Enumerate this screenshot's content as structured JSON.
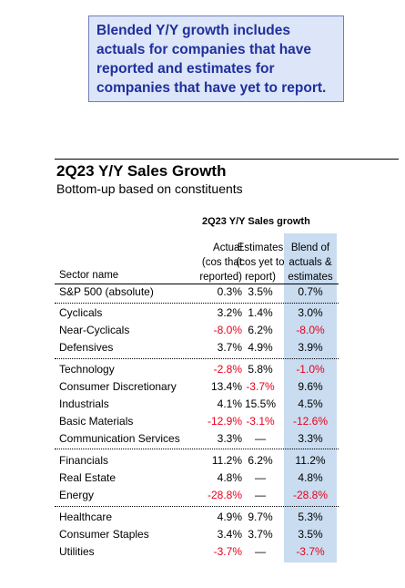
{
  "callout": {
    "text": "Blended Y/Y growth includes actuals for companies that have reported and estimates for companies that have yet to report."
  },
  "title": "2Q23 Y/Y Sales Growth",
  "subtitle": "Bottom-up based on constituents",
  "table": {
    "title": "2Q23 Y/Y Sales growth",
    "headers": {
      "sector": "Sector name",
      "actual": [
        "Actual",
        "(cos that",
        "reported)"
      ],
      "estimates": [
        "Estimates",
        "(cos yet to",
        "report)"
      ],
      "blend": [
        "Blend of",
        "actuals &",
        "estimates"
      ]
    },
    "rows": [
      {
        "sector": "S&P 500 (absolute)",
        "actual": "0.3%",
        "estimates": "3.5%",
        "blend": "0.7%"
      },
      {
        "sector": "Cyclicals",
        "actual": "3.2%",
        "estimates": "1.4%",
        "blend": "3.0%"
      },
      {
        "sector": "Near-Cyclicals",
        "actual": "-8.0%",
        "estimates": "6.2%",
        "blend": "-8.0%"
      },
      {
        "sector": "Defensives",
        "actual": "3.7%",
        "estimates": "4.9%",
        "blend": "3.9%"
      },
      {
        "sector": "Technology",
        "actual": "-2.8%",
        "estimates": "5.8%",
        "blend": "-1.0%"
      },
      {
        "sector": "Consumer Discretionary",
        "actual": "13.4%",
        "estimates": "-3.7%",
        "blend": "9.6%"
      },
      {
        "sector": "Industrials",
        "actual": "4.1%",
        "estimates": "15.5%",
        "blend": "4.5%"
      },
      {
        "sector": "Basic Materials",
        "actual": "-12.9%",
        "estimates": "-3.1%",
        "blend": "-12.6%"
      },
      {
        "sector": "Communication Services",
        "actual": "3.3%",
        "estimates": "—",
        "blend": "3.3%"
      },
      {
        "sector": "Financials",
        "actual": "11.2%",
        "estimates": "6.2%",
        "blend": "11.2%"
      },
      {
        "sector": "Real Estate",
        "actual": "4.8%",
        "estimates": "—",
        "blend": "4.8%"
      },
      {
        "sector": "Energy",
        "actual": "-28.8%",
        "estimates": "—",
        "blend": "-28.8%"
      },
      {
        "sector": "Healthcare",
        "actual": "4.9%",
        "estimates": "9.7%",
        "blend": "5.3%"
      },
      {
        "sector": "Consumer Staples",
        "actual": "3.4%",
        "estimates": "3.7%",
        "blend": "3.5%"
      },
      {
        "sector": "Utilities",
        "actual": "-3.7%",
        "estimates": "—",
        "blend": "-3.7%"
      }
    ]
  },
  "colors": {
    "negative": "#e8001c",
    "callout_text": "#1f2f9c",
    "callout_bg": "#dce6f8",
    "blend_bg": "#c9dcf0"
  }
}
